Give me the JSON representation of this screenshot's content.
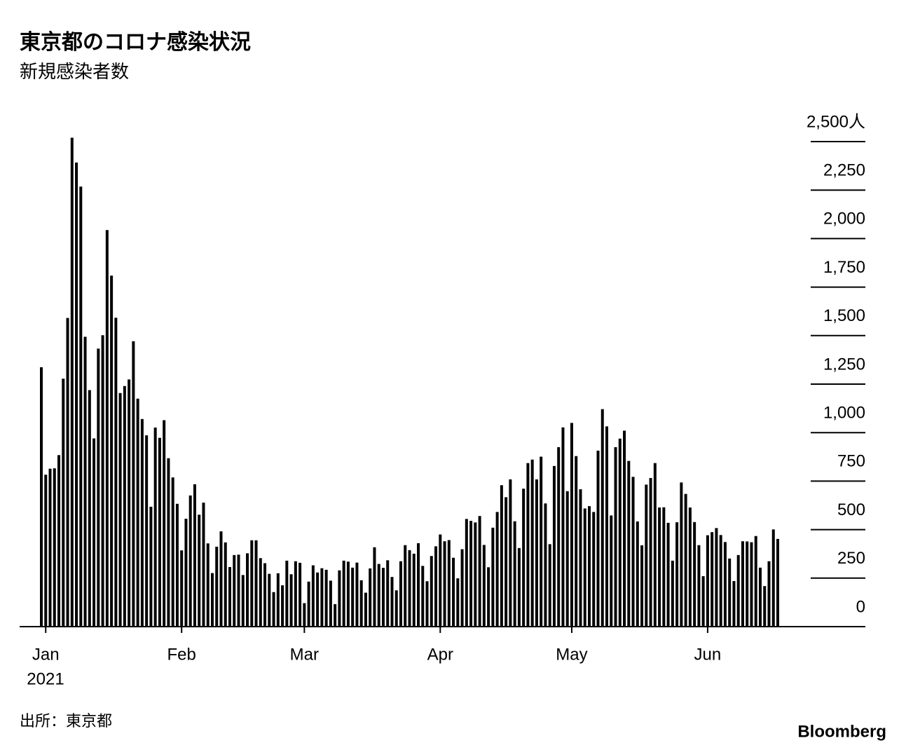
{
  "chart_data": {
    "type": "bar",
    "title": "東京都のコロナ感染状況",
    "subtitle": "新規感染者数",
    "source": "出所：東京都",
    "brand": "Bloomberg",
    "x_sub_label": "2021",
    "color": "#000000",
    "y_axis_side": "right",
    "ylim": [
      0,
      2500
    ],
    "yticks": [
      0,
      250,
      500,
      750,
      {
        "value": 1000,
        "label": "1,000"
      },
      {
        "value": 1250,
        "label": "1,250"
      },
      {
        "value": 1500,
        "label": "1,500"
      },
      {
        "value": 1750,
        "label": "1,750"
      },
      {
        "value": 2000,
        "label": "2,000"
      },
      {
        "value": 2250,
        "label": "2,250"
      },
      {
        "value": 2500,
        "label": "2,500人"
      }
    ],
    "categories": [
      null,
      "Jan",
      null,
      null,
      null,
      null,
      null,
      null,
      null,
      null,
      null,
      null,
      null,
      null,
      null,
      null,
      null,
      null,
      null,
      null,
      null,
      null,
      null,
      null,
      null,
      null,
      null,
      null,
      null,
      null,
      null,
      null,
      "Feb",
      null,
      null,
      null,
      null,
      null,
      null,
      null,
      null,
      null,
      null,
      null,
      null,
      null,
      null,
      null,
      null,
      null,
      null,
      null,
      null,
      null,
      null,
      null,
      null,
      null,
      null,
      null,
      "Mar",
      null,
      null,
      null,
      null,
      null,
      null,
      null,
      null,
      null,
      null,
      null,
      null,
      null,
      null,
      null,
      null,
      null,
      null,
      null,
      null,
      null,
      null,
      null,
      null,
      null,
      null,
      null,
      null,
      null,
      null,
      "Apr",
      null,
      null,
      null,
      null,
      null,
      null,
      null,
      null,
      null,
      null,
      null,
      null,
      null,
      null,
      null,
      null,
      null,
      null,
      null,
      null,
      null,
      null,
      null,
      null,
      null,
      null,
      null,
      null,
      null,
      "May",
      null,
      null,
      null,
      null,
      null,
      null,
      null,
      null,
      null,
      null,
      null,
      null,
      null,
      null,
      null,
      null,
      null,
      null,
      null,
      null,
      null,
      null,
      null,
      null,
      null,
      null,
      null,
      null,
      null,
      null,
      "Jun",
      null,
      null,
      null,
      null,
      null,
      null,
      null,
      null,
      null,
      null,
      null,
      null,
      null,
      null,
      null,
      null
    ],
    "values": [
      1337,
      783,
      814,
      816,
      884,
      1278,
      1591,
      2520,
      2392,
      2268,
      1494,
      1219,
      970,
      1433,
      1502,
      2044,
      1809,
      1592,
      1204,
      1240,
      1274,
      1471,
      1175,
      1070,
      986,
      618,
      1026,
      973,
      1064,
      868,
      769,
      633,
      393,
      556,
      676,
      734,
      577,
      639,
      429,
      276,
      412,
      491,
      434,
      307,
      369,
      371,
      266,
      378,
      445,
      445,
      353,
      327,
      272,
      178,
      275,
      213,
      340,
      270,
      337,
      329,
      121,
      232,
      316,
      279,
      301,
      293,
      237,
      116,
      290,
      340,
      335,
      304,
      330,
      239,
      175,
      300,
      409,
      323,
      303,
      342,
      256,
      187,
      337,
      420,
      394,
      376,
      430,
      313,
      234,
      364,
      414,
      475,
      440,
      446,
      355,
      249,
      399,
      555,
      545,
      537,
      570,
      421,
      306,
      510,
      591,
      729,
      667,
      759,
      543,
      405,
      711,
      843,
      861,
      759,
      876,
      635,
      425,
      828,
      925,
      1027,
      698,
      1050,
      879,
      708,
      609,
      621,
      591,
      907,
      1121,
      1032,
      573,
      925,
      969,
      1010,
      854,
      772,
      542,
      419,
      732,
      766,
      843,
      614,
      615,
      535,
      340,
      538,
      743,
      684,
      614,
      539,
      420,
      260,
      471,
      487,
      508,
      472,
      436,
      351,
      235,
      369,
      440,
      439,
      435,
      467,
      304,
      209,
      337,
      501,
      452
    ]
  }
}
